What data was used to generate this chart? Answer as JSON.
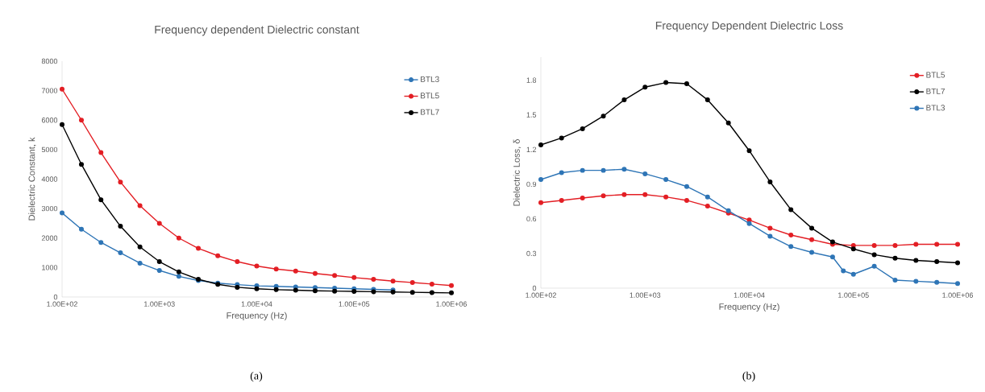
{
  "chart_data": [
    {
      "type": "line",
      "title": "Frequency dependent Dielectric constant",
      "xlabel": "Frequency (Hz)",
      "ylabel": "Dielectric Constant, k",
      "annotations": [
        "(a)"
      ],
      "x": [
        100,
        158,
        251,
        398,
        631,
        1000,
        1585,
        2512,
        3981,
        6310,
        10000,
        15850,
        25120,
        39810,
        63100,
        100000,
        158500,
        251200,
        398100,
        631000,
        1000000
      ],
      "series": [
        {
          "name": "BTL3",
          "color": "#2e75b6",
          "values": [
            2850,
            2300,
            1850,
            1500,
            1150,
            900,
            700,
            560,
            470,
            420,
            380,
            360,
            340,
            320,
            300,
            280,
            260,
            240,
            null,
            null,
            null
          ]
        },
        {
          "name": "BTL5",
          "color": "#e31e24",
          "values": [
            7050,
            6000,
            4900,
            3900,
            3100,
            2500,
            2000,
            1650,
            1400,
            1200,
            1050,
            950,
            880,
            800,
            730,
            660,
            600,
            540,
            490,
            440,
            390
          ]
        },
        {
          "name": "BTL7",
          "color": "#000000",
          "values": [
            5850,
            4500,
            3300,
            2400,
            1700,
            1200,
            850,
            600,
            430,
            330,
            280,
            250,
            230,
            210,
            200,
            190,
            180,
            170,
            160,
            150,
            140
          ]
        }
      ],
      "xlim": [
        100,
        1000000
      ],
      "ylim": [
        0,
        8000
      ],
      "xticks": [
        {
          "value": 100,
          "label": "1.00E+02"
        },
        {
          "value": 1000,
          "label": "1.00E+03"
        },
        {
          "value": 10000,
          "label": "1.00E+04"
        },
        {
          "value": 100000,
          "label": "1.00E+05"
        },
        {
          "value": 1000000,
          "label": "1.00E+06"
        }
      ],
      "yticks": [
        0,
        1000,
        2000,
        3000,
        4000,
        5000,
        6000,
        7000,
        8000
      ],
      "log": "x",
      "legend": "top right",
      "marker": "circle",
      "line_style": "solid"
    },
    {
      "type": "line",
      "title": "Frequency Dependent Dielectric Loss",
      "xlabel": "Frequency (Hz)",
      "ylabel": "Dielectric Loss, δ",
      "annotations": [
        "(b)"
      ],
      "x": [
        100,
        158,
        251,
        398,
        631,
        1000,
        1585,
        2512,
        3981,
        6310,
        10000,
        15850,
        25120,
        39810,
        63100,
        100000,
        158500,
        251200,
        398100,
        631000,
        1000000
      ],
      "series": [
        {
          "name": "BTL5",
          "color": "#e31e24",
          "values": [
            0.74,
            0.76,
            0.78,
            0.8,
            0.81,
            0.81,
            0.79,
            0.76,
            0.71,
            0.65,
            0.59,
            0.52,
            0.46,
            0.42,
            0.38,
            0.37,
            0.37,
            0.37,
            0.38,
            0.38,
            0.38
          ]
        },
        {
          "name": "BTL7",
          "color": "#000000",
          "values": [
            1.24,
            1.3,
            1.38,
            1.49,
            1.63,
            1.74,
            1.78,
            1.77,
            1.63,
            1.43,
            1.19,
            0.92,
            0.68,
            0.52,
            0.4,
            0.34,
            0.29,
            0.26,
            0.24,
            0.23,
            0.22
          ]
        },
        {
          "name": "BTL3",
          "color": "#2e75b6",
          "x": [
            100,
            158,
            251,
            398,
            631,
            1000,
            1585,
            2512,
            3981,
            6310,
            10000,
            15850,
            25120,
            39810,
            63100,
            80000,
            100000,
            158500,
            251200,
            398100,
            631000,
            1000000
          ],
          "values": [
            0.94,
            1.0,
            1.02,
            1.02,
            1.03,
            0.99,
            0.94,
            0.88,
            0.79,
            0.67,
            0.56,
            0.45,
            0.36,
            0.31,
            0.27,
            0.15,
            0.12,
            0.19,
            0.07,
            0.06,
            0.05,
            0.04
          ]
        }
      ],
      "xlim": [
        100,
        1000000
      ],
      "ylim": [
        0,
        2.0
      ],
      "xticks": [
        {
          "value": 100,
          "label": "1.00E+02"
        },
        {
          "value": 1000,
          "label": "1.00E+03"
        },
        {
          "value": 10000,
          "label": "1.00E+04"
        },
        {
          "value": 100000,
          "label": "1.00E+05"
        },
        {
          "value": 1000000,
          "label": "1.00E+06"
        }
      ],
      "yticks": [
        0,
        0.3,
        0.6,
        0.9,
        1.2,
        1.5,
        1.8
      ],
      "log": "x",
      "legend": "top right",
      "marker": "circle",
      "line_style": "solid"
    }
  ]
}
